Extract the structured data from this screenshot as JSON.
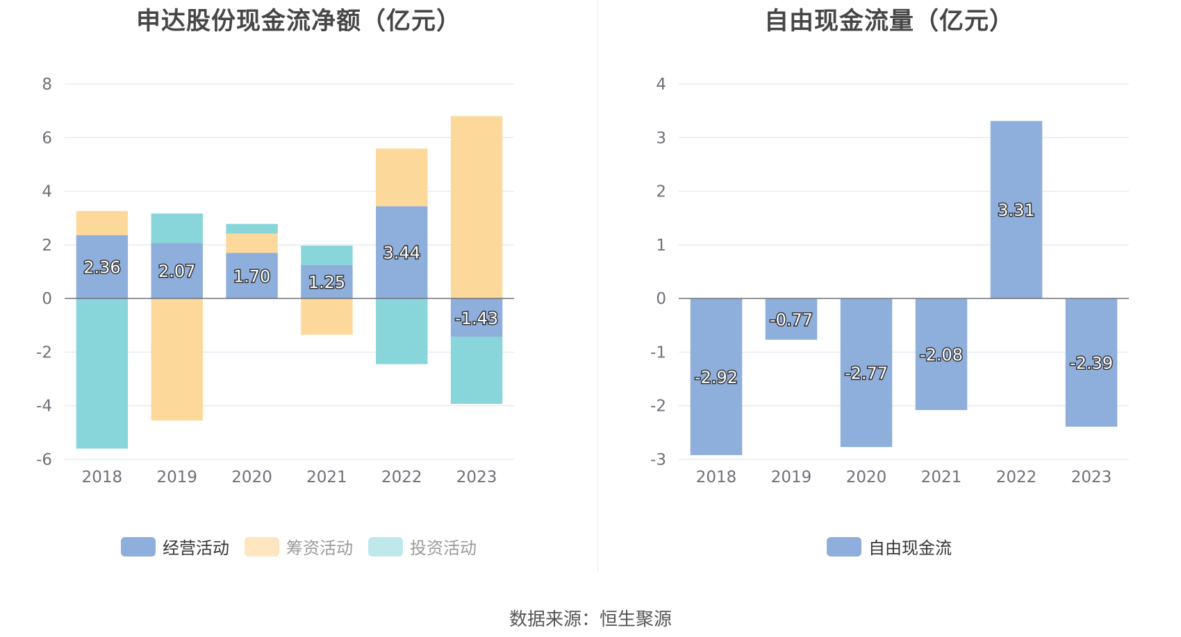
{
  "charts": [
    {
      "title": "申达股份现金流净额（亿元）",
      "legend": [
        {
          "label": "经营活动",
          "color": "#8eaedb"
        },
        {
          "label": "筹资活动",
          "color": "#fcd89a"
        },
        {
          "label": "投资活动",
          "color": "#88d6d9"
        }
      ]
    },
    {
      "title": "自由现金流量（亿元）",
      "legend": [
        {
          "label": "自由现金流",
          "color": "#8eaedb"
        }
      ]
    }
  ],
  "source": "数据来源：恒生聚源",
  "chart_data": [
    {
      "type": "bar",
      "stacked": true,
      "title": "申达股份现金流净额（亿元）",
      "categories": [
        "2018",
        "2019",
        "2020",
        "2021",
        "2022",
        "2023"
      ],
      "ylim": [
        -6,
        8
      ],
      "yticks": [
        8,
        6,
        4,
        2,
        0,
        -2,
        -4,
        -6
      ],
      "grid": true,
      "legend_position": "bottom",
      "series": [
        {
          "name": "经营活动",
          "color": "#8eaedb",
          "values": [
            2.36,
            2.07,
            1.7,
            1.25,
            3.44,
            -1.43
          ],
          "labels": [
            "2.36",
            "2.07",
            "1.70",
            "1.25",
            "3.44",
            "-1.43"
          ]
        },
        {
          "name": "筹资活动",
          "color": "#fcd89a",
          "values": [
            0.9,
            -4.55,
            0.72,
            -1.35,
            2.15,
            6.8
          ]
        },
        {
          "name": "投资活动",
          "color": "#88d6d9",
          "values": [
            -5.6,
            1.1,
            0.36,
            0.72,
            -2.45,
            -2.5
          ]
        }
      ]
    },
    {
      "type": "bar",
      "title": "自由现金流量（亿元）",
      "categories": [
        "2018",
        "2019",
        "2020",
        "2021",
        "2022",
        "2023"
      ],
      "ylim": [
        -3,
        4
      ],
      "yticks": [
        4,
        3,
        2,
        1,
        0,
        -1,
        -2,
        -3
      ],
      "grid": true,
      "legend_position": "bottom",
      "series": [
        {
          "name": "自由现金流",
          "color": "#8eaedb",
          "values": [
            -2.92,
            -0.77,
            -2.77,
            -2.08,
            3.31,
            -2.39
          ],
          "labels": [
            "-2.92",
            "-0.77",
            "-2.77",
            "-2.08",
            "3.31",
            "-2.39"
          ]
        }
      ]
    }
  ]
}
